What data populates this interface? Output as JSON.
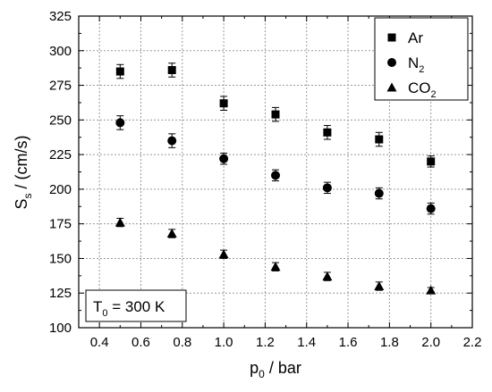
{
  "chart_data": {
    "type": "scatter",
    "xlabel": {
      "main": "p",
      "sub": "0",
      "rest": " / bar"
    },
    "ylabel": {
      "main": "S",
      "sub": "s",
      "rest": " / (cm/s)"
    },
    "xlim": [
      0.3,
      2.2
    ],
    "ylim": [
      100,
      325
    ],
    "xticks": [
      0.4,
      0.6,
      0.8,
      1.0,
      1.2,
      1.4,
      1.6,
      1.8,
      2.0,
      2.2
    ],
    "xtick_labels": [
      "0.4",
      "0.6",
      "0.8",
      "1.0",
      "1.2",
      "1.4",
      "1.6",
      "1.8",
      "2.0",
      "2.2"
    ],
    "yticks": [
      100,
      125,
      150,
      175,
      200,
      225,
      250,
      275,
      300,
      325
    ],
    "ytick_labels": [
      "100",
      "125",
      "150",
      "175",
      "200",
      "225",
      "250",
      "275",
      "300",
      "325"
    ],
    "grid": true,
    "legend_position": "top-right",
    "annotation": {
      "main": "T",
      "sub": "0",
      "rest": " = 300 K",
      "position": "bottom-left"
    },
    "series": [
      {
        "name": "Ar",
        "legend": {
          "main": "Ar",
          "sub": ""
        },
        "marker": "square",
        "x": [
          0.5,
          0.75,
          1.0,
          1.25,
          1.5,
          1.75,
          2.0
        ],
        "y": [
          285,
          286,
          262,
          254,
          241,
          236,
          220
        ],
        "err": [
          5,
          5,
          5,
          5,
          5,
          5,
          4
        ]
      },
      {
        "name": "N2",
        "legend": {
          "main": "N",
          "sub": "2"
        },
        "marker": "circle",
        "x": [
          0.5,
          0.75,
          1.0,
          1.25,
          1.5,
          1.75,
          2.0
        ],
        "y": [
          248,
          235,
          222,
          210,
          201,
          197,
          186
        ],
        "err": [
          5,
          5,
          4,
          4,
          4,
          4,
          4
        ]
      },
      {
        "name": "CO2",
        "legend": {
          "main": "CO",
          "sub": "2"
        },
        "marker": "triangle",
        "x": [
          0.5,
          0.75,
          1.0,
          1.25,
          1.5,
          1.75,
          2.0
        ],
        "y": [
          176,
          168,
          153,
          144,
          137,
          130,
          127
        ],
        "err": [
          3,
          3,
          3,
          3,
          3,
          3,
          2
        ]
      }
    ]
  },
  "colors": {
    "marker": "#000000",
    "grid": "#9a9a9a",
    "axis": "#000000",
    "background": "#ffffff"
  }
}
